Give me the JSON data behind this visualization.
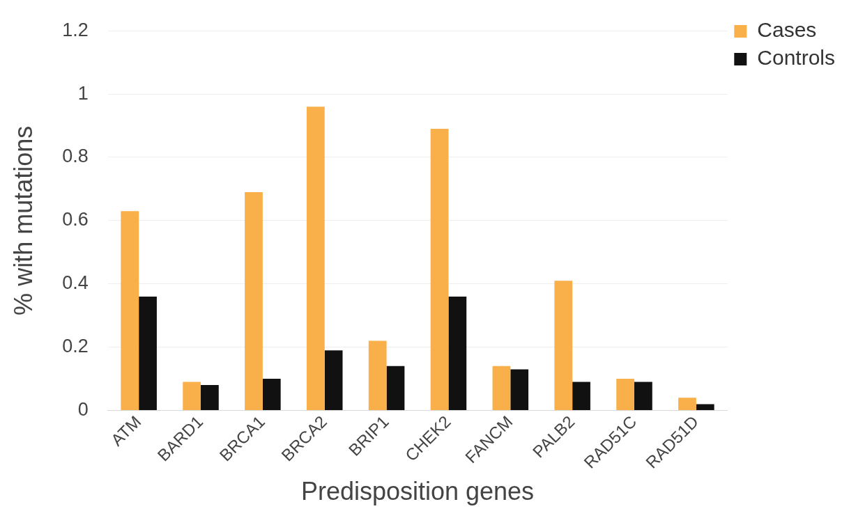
{
  "chart_data": {
    "type": "bar",
    "xlabel": "Predisposition genes",
    "ylabel": "% with mutations",
    "categories": [
      "ATM",
      "BARD1",
      "BRCA1",
      "BRCA2",
      "BRIP1",
      "CHEK2",
      "FANCM",
      "PALB2",
      "RAD51C",
      "RAD51D"
    ],
    "series": [
      {
        "name": "Cases",
        "color": "#f9b04b",
        "values": [
          0.63,
          0.09,
          0.69,
          0.96,
          0.22,
          0.89,
          0.14,
          0.41,
          0.1,
          0.04
        ]
      },
      {
        "name": "Controls",
        "color": "#111111",
        "values": [
          0.36,
          0.08,
          0.1,
          0.19,
          0.14,
          0.36,
          0.13,
          0.09,
          0.09,
          0.02
        ]
      }
    ],
    "ylim": [
      0,
      1.2
    ],
    "yticks": [
      0,
      {
        "value": 0.2,
        "label": "0.2"
      },
      {
        "value": 0.4,
        "label": "0.4"
      },
      {
        "value": 0.6,
        "label": "0.6"
      },
      {
        "value": 0.8,
        "label": "0.8"
      },
      1,
      {
        "value": 1.2,
        "label": "1.2"
      }
    ],
    "grid": "y",
    "legend": "top right"
  }
}
